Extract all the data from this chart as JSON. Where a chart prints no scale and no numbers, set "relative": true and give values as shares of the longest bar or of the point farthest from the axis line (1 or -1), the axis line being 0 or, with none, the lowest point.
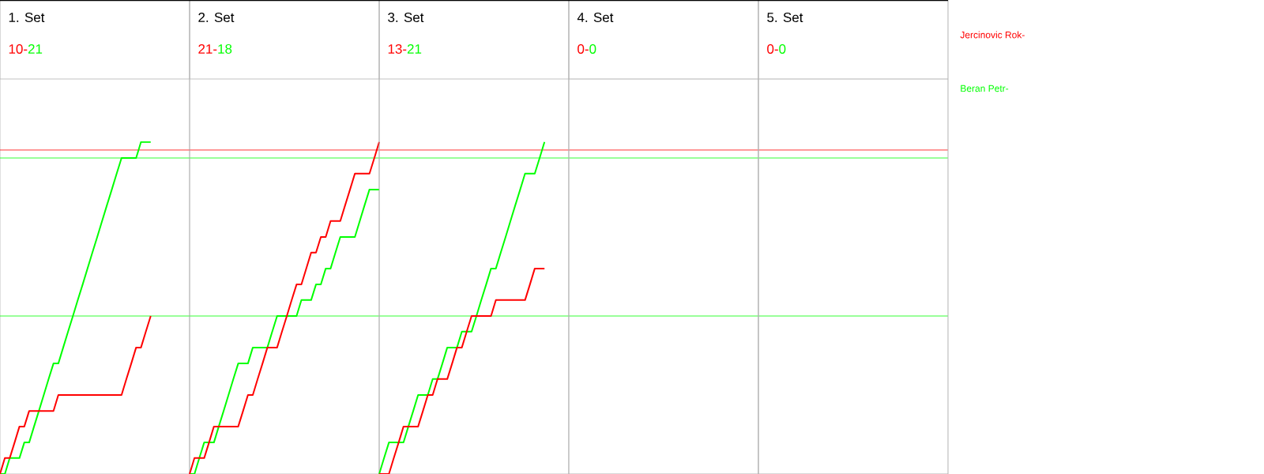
{
  "chart_data": [
    {
      "type": "line",
      "title": "1. Set",
      "annotations": [
        "10-",
        "21"
      ],
      "categories": [
        null,
        null,
        null,
        null,
        null,
        null,
        null,
        null,
        null,
        null,
        null,
        null,
        null,
        null,
        null,
        null,
        null,
        null,
        null,
        null,
        null,
        null,
        null,
        null,
        null,
        null,
        null,
        null,
        null,
        null,
        null,
        null,
        null,
        null,
        null,
        null,
        null,
        null,
        null,
        null
      ],
      "relative": true,
      "legend": "right",
      "ref_lines": [
        {
          "axis": "y",
          "value": 0.976,
          "color": "#ff0000"
        },
        {
          "axis": "y",
          "value": 0.952,
          "color": "#00ff00"
        },
        {
          "axis": "y",
          "value": 0.476,
          "color": "#00ff00"
        }
      ],
      "series": [
        {
          "name": "Jercinovic Rok-",
          "color": "#ff0000",
          "values": [
            0,
            0.048,
            0.048,
            0.095,
            0.143,
            0.143,
            0.19,
            0.19,
            0.19,
            0.19,
            0.19,
            0.19,
            0.238,
            0.238,
            0.238,
            0.238,
            0.238,
            0.238,
            0.238,
            0.238,
            0.238,
            0.238,
            0.238,
            0.238,
            0.238,
            0.238,
            0.286,
            0.333,
            0.381,
            0.381,
            0.429,
            0.476,
            null,
            null,
            null,
            null,
            null,
            null,
            null,
            null
          ]
        },
        {
          "name": "Beran Petr-",
          "color": "#00ff00",
          "values": [
            0,
            0,
            0.048,
            0.048,
            0.048,
            0.095,
            0.095,
            0.143,
            0.19,
            0.238,
            0.286,
            0.333,
            0.333,
            0.381,
            0.429,
            0.476,
            0.524,
            0.571,
            0.619,
            0.667,
            0.714,
            0.762,
            0.81,
            0.857,
            0.905,
            0.952,
            0.952,
            0.952,
            0.952,
            1,
            1,
            1,
            null,
            null,
            null,
            null,
            null,
            null,
            null,
            null
          ]
        }
      ]
    },
    {
      "type": "line",
      "title": "2. Set",
      "annotations": [
        "21-",
        "18"
      ],
      "categories": [
        null,
        null,
        null,
        null,
        null,
        null,
        null,
        null,
        null,
        null,
        null,
        null,
        null,
        null,
        null,
        null,
        null,
        null,
        null,
        null,
        null,
        null,
        null,
        null,
        null,
        null,
        null,
        null,
        null,
        null,
        null,
        null,
        null,
        null,
        null,
        null,
        null,
        null,
        null,
        null
      ],
      "relative": true,
      "series": [
        {
          "color": "#ff0000",
          "values": [
            0,
            0.048,
            0.048,
            0.048,
            0.095,
            0.143,
            0.143,
            0.143,
            0.143,
            0.143,
            0.143,
            0.19,
            0.238,
            0.238,
            0.286,
            0.333,
            0.381,
            0.381,
            0.381,
            0.429,
            0.476,
            0.524,
            0.571,
            0.571,
            0.619,
            0.667,
            0.667,
            0.714,
            0.714,
            0.762,
            0.762,
            0.762,
            0.81,
            0.857,
            0.905,
            0.905,
            0.905,
            0.905,
            0.952,
            1
          ]
        },
        {
          "color": "#00ff00",
          "values": [
            0,
            0,
            0.048,
            0.095,
            0.095,
            0.095,
            0.143,
            0.19,
            0.238,
            0.286,
            0.333,
            0.333,
            0.333,
            0.381,
            0.381,
            0.381,
            0.381,
            0.429,
            0.476,
            0.476,
            0.476,
            0.476,
            0.476,
            0.524,
            0.524,
            0.524,
            0.571,
            0.571,
            0.619,
            0.619,
            0.667,
            0.714,
            0.714,
            0.714,
            0.714,
            0.762,
            0.81,
            0.857,
            0.857,
            0.857
          ]
        }
      ]
    },
    {
      "type": "line",
      "title": "3. Set",
      "annotations": [
        "13-",
        "21"
      ],
      "categories": [
        null,
        null,
        null,
        null,
        null,
        null,
        null,
        null,
        null,
        null,
        null,
        null,
        null,
        null,
        null,
        null,
        null,
        null,
        null,
        null,
        null,
        null,
        null,
        null,
        null,
        null,
        null,
        null,
        null,
        null,
        null,
        null,
        null,
        null,
        null,
        null,
        null,
        null,
        null,
        null
      ],
      "relative": true,
      "series": [
        {
          "color": "#ff0000",
          "values": [
            0,
            0,
            0,
            0.048,
            0.095,
            0.143,
            0.143,
            0.143,
            0.143,
            0.19,
            0.238,
            0.238,
            0.286,
            0.286,
            0.286,
            0.333,
            0.381,
            0.381,
            0.429,
            0.476,
            0.476,
            0.476,
            0.476,
            0.476,
            0.524,
            0.524,
            0.524,
            0.524,
            0.524,
            0.524,
            0.524,
            0.571,
            0.619,
            0.619,
            0.619,
            null,
            null,
            null,
            null,
            null
          ]
        },
        {
          "color": "#00ff00",
          "values": [
            0,
            0.048,
            0.095,
            0.095,
            0.095,
            0.095,
            0.143,
            0.19,
            0.238,
            0.238,
            0.238,
            0.286,
            0.286,
            0.333,
            0.381,
            0.381,
            0.381,
            0.429,
            0.429,
            0.429,
            0.476,
            0.524,
            0.571,
            0.619,
            0.619,
            0.667,
            0.714,
            0.762,
            0.81,
            0.857,
            0.905,
            0.905,
            0.905,
            0.952,
            1,
            null,
            null,
            null,
            null,
            null
          ]
        }
      ]
    },
    {
      "type": "other",
      "title": "4. Set",
      "annotations": [
        "0-",
        "0"
      ]
    },
    {
      "type": "other",
      "title": "5. Set",
      "annotations": [
        "0-",
        "0"
      ]
    }
  ]
}
